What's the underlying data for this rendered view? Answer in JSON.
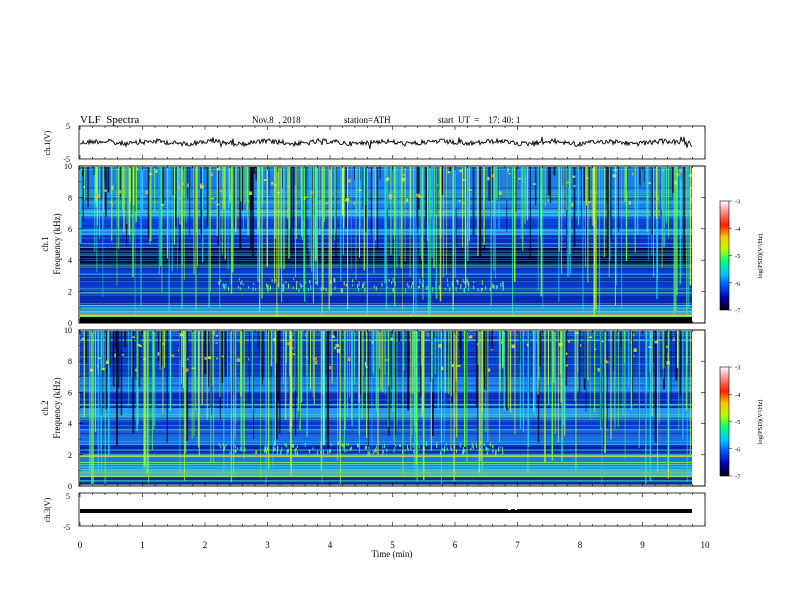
{
  "header": {
    "title": "VLF  Spectra",
    "date": "Nov.8  , 2018",
    "station": "station=ATH",
    "start": "start  UT  =    17: 40: 1"
  },
  "chart_data": [
    {
      "type": "line",
      "name": "ch1-waveform",
      "ylabel": "ch.1(V)",
      "ylim": [
        -5,
        5
      ],
      "yticks": [
        "5",
        "-5"
      ],
      "xlim": [
        0,
        10
      ],
      "series": [
        {
          "color": "#000000",
          "level": 0,
          "data_end_min": 9.8
        }
      ]
    },
    {
      "type": "heatmap",
      "name": "ch1-spectrogram",
      "ylabel": "Frequency  (kHz)",
      "channel_label": "ch.1",
      "ylim": [
        0,
        10
      ],
      "yticks": [
        "0",
        "2",
        "4",
        "6",
        "8",
        "10"
      ],
      "xlim": [
        0,
        10
      ],
      "data_end_min": 9.8
    },
    {
      "type": "heatmap",
      "name": "ch2-spectrogram",
      "ylabel": "Frequency  (kHz)",
      "channel_label": "ch.2",
      "ylim": [
        0,
        10
      ],
      "yticks": [
        "0",
        "2",
        "4",
        "6",
        "8",
        "10"
      ],
      "xlim": [
        0,
        10
      ],
      "data_end_min": 9.8
    },
    {
      "type": "line",
      "name": "ch3-waveform",
      "ylabel": "ch.3(V)",
      "ylim": [
        -5,
        5
      ],
      "yticks": [
        "5",
        "-5"
      ],
      "xlim": [
        0,
        10
      ],
      "series": [
        {
          "color": "#000000",
          "level": -1,
          "data_end_min": 9.8
        }
      ]
    }
  ],
  "xaxis": {
    "label": "Time  (min)",
    "ticks": [
      "0",
      "1",
      "2",
      "3",
      "4",
      "5",
      "6",
      "7",
      "8",
      "9",
      "10"
    ]
  },
  "colorbar": {
    "label": "log(PSD)(V²/Hz)",
    "range": [
      -7,
      -3
    ],
    "ticks": [
      "-3",
      "-4",
      "-5",
      "-6",
      "-7"
    ],
    "colors": [
      "#000000",
      "#0000b4",
      "#0050ff",
      "#00c8ff",
      "#00ff80",
      "#b4ff00",
      "#ffc800",
      "#ff2000",
      "#ff8080",
      "#ffffff"
    ]
  }
}
